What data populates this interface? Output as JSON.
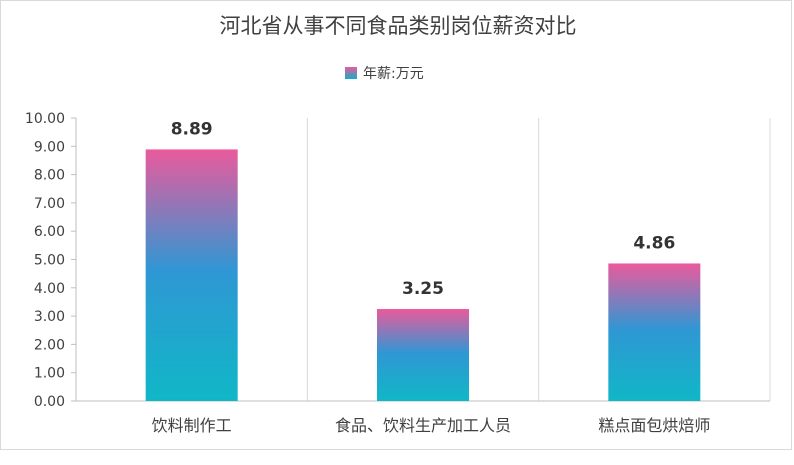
{
  "chart_data": {
    "type": "bar",
    "title": "河北省从事不同食品类别岗位薪资对比",
    "legend": {
      "position": "top",
      "entries": [
        "年薪:万元"
      ]
    },
    "categories": [
      "饮料制作工",
      "食品、饮料生产加工人员",
      "糕点面包烘焙师"
    ],
    "series": [
      {
        "name": "年薪:万元",
        "values": [
          8.89,
          3.25,
          4.86
        ],
        "labels": [
          "8.89",
          "3.25",
          "4.86"
        ]
      }
    ],
    "ylim": [
      0,
      10
    ],
    "yticks": [
      0,
      1,
      2,
      3,
      4,
      5,
      6,
      7,
      8,
      9,
      10
    ],
    "ytick_labels": [
      "0.00",
      "1.00",
      "2.00",
      "3.00",
      "4.00",
      "5.00",
      "6.00",
      "7.00",
      "8.00",
      "9.00",
      "10.00"
    ],
    "xlabel": "",
    "ylabel": "",
    "grid": "vertical-category-separators",
    "colors": {
      "bar_top": "#ea5a9c",
      "bar_middle": "#2f97d4",
      "bar_bottom": "#10b7c7",
      "legend_top": "#ea5a9c",
      "legend_bottom": "#14aeca",
      "axis": "#bfbfbf",
      "grid": "#d9d9d9",
      "text": "#404040",
      "data_label": "#333333"
    }
  }
}
